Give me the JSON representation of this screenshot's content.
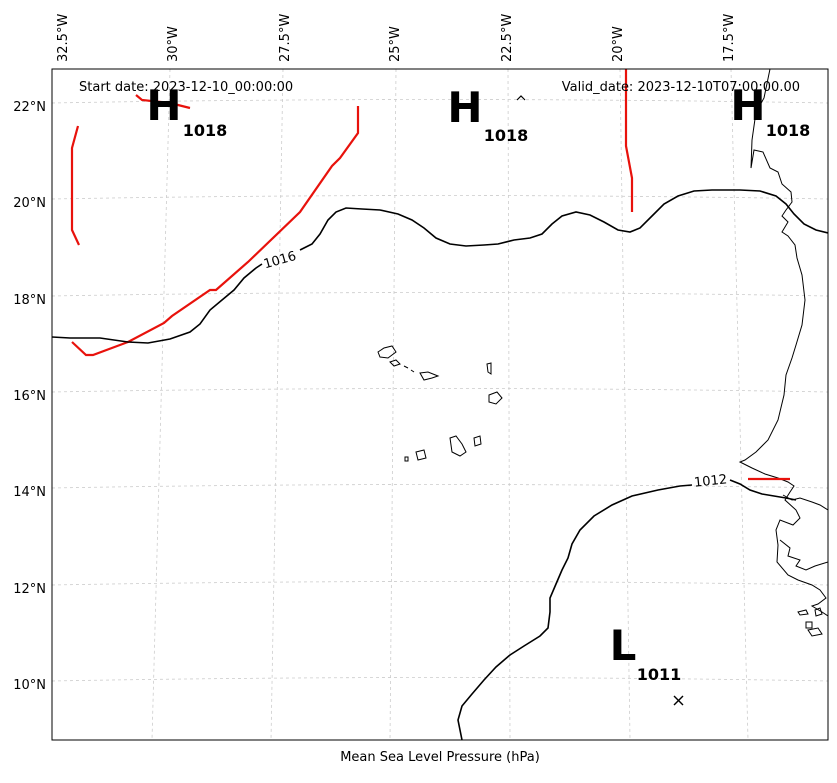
{
  "header": {
    "start_date": "Start date: 2023-12-10_00:00:00",
    "valid_date": "Valid_date: 2023-12-10T07:00:00.00"
  },
  "xlabel": "Mean Sea Level Pressure (hPa)",
  "lon_ticks": [
    "32.5°W",
    "30°W",
    "27.5°W",
    "25°W",
    "22.5°W",
    "20°W",
    "17.5°W"
  ],
  "lat_ticks": [
    "22°N",
    "20°N",
    "18°N",
    "16°N",
    "14°N",
    "12°N",
    "10°N"
  ],
  "contour_labels": [
    "1016",
    "1012"
  ],
  "pressure_centers": [
    {
      "type": "H",
      "value": "1018"
    },
    {
      "type": "H",
      "value": "1018"
    },
    {
      "type": "H",
      "value": "1018"
    },
    {
      "type": "L",
      "value": "1011"
    }
  ],
  "colors": {
    "isobar": "#000000",
    "ridge_line": "#e8120c",
    "grid": "#cccccc"
  }
}
